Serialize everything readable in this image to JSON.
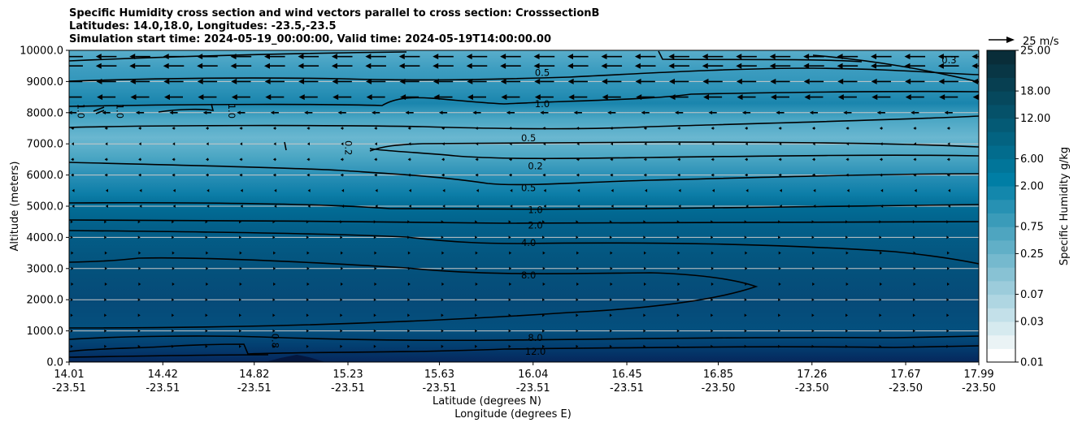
{
  "chart_data": {
    "type": "contour",
    "title_lines": [
      "Specific Humidity cross section and wind vectors parallel to cross section: CrosssectionB",
      "Latitudes: 14.0,18.0, Longitudes: -23.5,-23.5",
      "Simulation start time: 2024-05-19_00:00:00, Valid time: 2024-05-19T14:00:00.00"
    ],
    "ylabel": "Altitude (meters)",
    "xlabel_lat": "Latitude (degrees N)",
    "xlabel_lon": "Longitude (degrees E)",
    "ylim": [
      0,
      10000
    ],
    "y_ticks": [
      "0.0",
      "1000.0",
      "2000.0",
      "3000.0",
      "4000.0",
      "5000.0",
      "6000.0",
      "7000.0",
      "8000.0",
      "9000.0",
      "10000.0"
    ],
    "x_ticks": [
      {
        "lat": "14.01",
        "lon": "-23.51"
      },
      {
        "lat": "14.42",
        "lon": "-23.51"
      },
      {
        "lat": "14.82",
        "lon": "-23.51"
      },
      {
        "lat": "15.23",
        "lon": "-23.51"
      },
      {
        "lat": "15.63",
        "lon": "-23.51"
      },
      {
        "lat": "16.04",
        "lon": "-23.51"
      },
      {
        "lat": "16.45",
        "lon": "-23.51"
      },
      {
        "lat": "16.85",
        "lon": "-23.50"
      },
      {
        "lat": "17.26",
        "lon": "-23.50"
      },
      {
        "lat": "17.67",
        "lon": "-23.50"
      },
      {
        "lat": "17.99",
        "lon": "-23.50"
      }
    ],
    "colorbar": {
      "label": "Specific Humidity g/kg",
      "tick_labels": [
        "0.01",
        "0.03",
        "0.07",
        "0.25",
        "0.75",
        "2.00",
        "6.00",
        "12.00",
        "18.00",
        "25.00"
      ],
      "colors": [
        "#ffffff",
        "#eaf3f5",
        "#d6eaef",
        "#c3e0e9",
        "#afd6e2",
        "#9cccdb",
        "#88c2d4",
        "#75b9ce",
        "#61afc7",
        "#4ea5c0",
        "#3a9bb9",
        "#2791b3",
        "#1387ac",
        "#007ea5",
        "#017599",
        "#026c8d",
        "#036381",
        "#045a75",
        "#055169",
        "#06485d",
        "#073f51",
        "#083645",
        "#092d39"
      ]
    },
    "contour_labels": [
      {
        "text": "0.5",
        "x": 16.08,
        "y": 9270
      },
      {
        "text": "1.0",
        "x": 16.08,
        "y": 8270
      },
      {
        "text": "0.5",
        "x": 16.02,
        "y": 7170
      },
      {
        "text": "0.2",
        "x": 16.05,
        "y": 6270
      },
      {
        "text": "0.5",
        "x": 16.02,
        "y": 5570
      },
      {
        "text": "1.0",
        "x": 16.05,
        "y": 4870
      },
      {
        "text": "2.0",
        "x": 16.05,
        "y": 4370
      },
      {
        "text": "4.0",
        "x": 16.02,
        "y": 3820
      },
      {
        "text": "8.0",
        "x": 16.02,
        "y": 2770
      },
      {
        "text": "8.0",
        "x": 16.05,
        "y": 770
      },
      {
        "text": "12.0",
        "x": 16.05,
        "y": 320
      },
      {
        "text": "0.3",
        "x": 17.86,
        "y": 9670
      },
      {
        "text": "0.2",
        "x": 15.23,
        "y": 6870
      },
      {
        "text": "1.0",
        "x": 14.06,
        "y": 8050
      },
      {
        "text": "1.0",
        "x": 14.23,
        "y": 8050
      },
      {
        "text": "1.0",
        "x": 14.72,
        "y": 8050
      },
      {
        "text": "0.8",
        "x": 14.91,
        "y": 680
      }
    ],
    "quiver_key": {
      "label": "25 m/s",
      "value": 25
    },
    "wind_rows": [
      {
        "alt": 9800,
        "u": -20
      },
      {
        "alt": 9500,
        "u": -20
      },
      {
        "alt": 9000,
        "u": -19
      },
      {
        "alt": 8500,
        "u": -18
      },
      {
        "alt": 8000,
        "u": -8
      },
      {
        "alt": 7500,
        "u": -3
      },
      {
        "alt": 7000,
        "u": -2
      },
      {
        "alt": 6500,
        "u": -3
      },
      {
        "alt": 6000,
        "u": -3
      },
      {
        "alt": 5500,
        "u": -1
      },
      {
        "alt": 5000,
        "u": -1
      },
      {
        "alt": 4500,
        "u": 1
      },
      {
        "alt": 4000,
        "u": 1
      },
      {
        "alt": 3500,
        "u": 2
      },
      {
        "alt": 3000,
        "u": 2
      },
      {
        "alt": 2500,
        "u": 2
      },
      {
        "alt": 2000,
        "u": 1
      },
      {
        "alt": 1500,
        "u": 1
      },
      {
        "alt": 1000,
        "u": 1
      },
      {
        "alt": 500,
        "u": 1
      }
    ]
  }
}
